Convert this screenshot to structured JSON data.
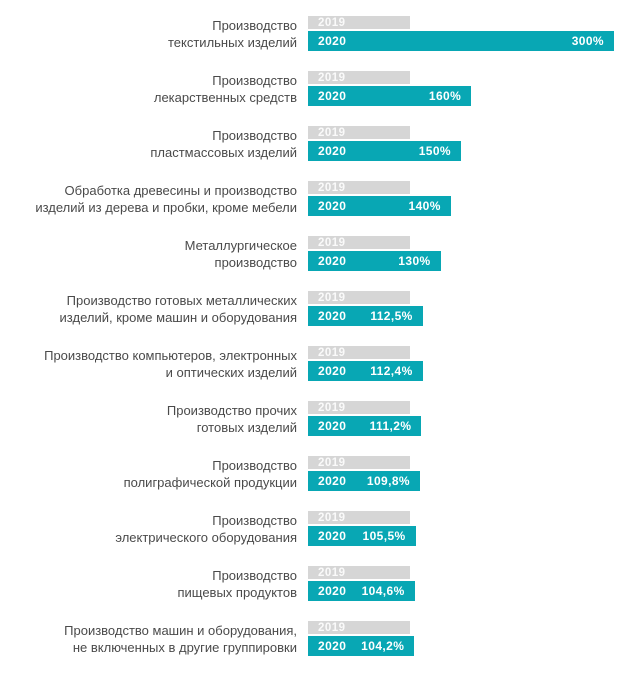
{
  "chart_data": {
    "type": "bar",
    "orientation": "horizontal",
    "title": "",
    "xlabel": "",
    "ylabel": "",
    "axis_visible": false,
    "grid": false,
    "legend_position": "inside-bars",
    "value_unit": "%",
    "categories": [
      "Производство текстильных изделий",
      "Производство лекарственных средств",
      "Производство пластмассовых изделий",
      "Обработка древесины и производство изделий из дерева и пробки, кроме мебели",
      "Металлургическое производство",
      "Производство готовых металлических изделий, кроме машин и оборудования",
      "Производство компьютеров, электронных и оптических изделий",
      "Производство прочих готовых изделий",
      "Производство полиграфической продукции",
      "Производство электрического оборудования",
      "Производство пищевых продуктов",
      "Производство машин и оборудования, не включенных в другие группировки"
    ],
    "label_lines": [
      [
        "Производство",
        "текстильных изделий"
      ],
      [
        "Производство",
        "лекарственных средств"
      ],
      [
        "Производство",
        "пластмассовых изделий"
      ],
      [
        "Обработка древесины и производство",
        "изделий из дерева и пробки, кроме мебели"
      ],
      [
        "Металлургическое",
        "производство"
      ],
      [
        "Производство готовых металлических",
        "изделий, кроме машин и оборудования"
      ],
      [
        "Производство компьютеров, электронных",
        "и оптических изделий"
      ],
      [
        "Производство прочих",
        "готовых изделий"
      ],
      [
        "Производство",
        "полиграфической продукции"
      ],
      [
        "Производство",
        "электрического оборудования"
      ],
      [
        "Производство",
        "пищевых продуктов"
      ],
      [
        "Производство машин и оборудования,",
        "не включенных в другие группировки"
      ]
    ],
    "series": [
      {
        "name": "2019",
        "color": "#d6d6d6",
        "values": [
          100,
          100,
          100,
          100,
          100,
          100,
          100,
          100,
          100,
          100,
          100,
          100
        ],
        "value_labels_shown": false,
        "note": "baseline reference bars, equal length, no value labels shown"
      },
      {
        "name": "2020",
        "color": "#08a7b4",
        "values": [
          300,
          160,
          150,
          140,
          130,
          112.5,
          112.4,
          111.2,
          109.8,
          105.5,
          104.6,
          104.2
        ],
        "value_labels": [
          "300%",
          "160%",
          "150%",
          "140%",
          "130%",
          "112,5%",
          "112,4%",
          "111,2%",
          "109,8%",
          "105,5%",
          "104,6%",
          "104,2%"
        ]
      }
    ],
    "xlim": [
      0,
      310
    ]
  },
  "colors": {
    "background": "#ffffff",
    "bar_2019": "#d6d6d6",
    "bar_2020": "#08a7b4",
    "category_label_text": "#4a4a4a",
    "bar_year_text_2019": "#e3e3e3",
    "bar_text_2020": "#ffffff"
  }
}
